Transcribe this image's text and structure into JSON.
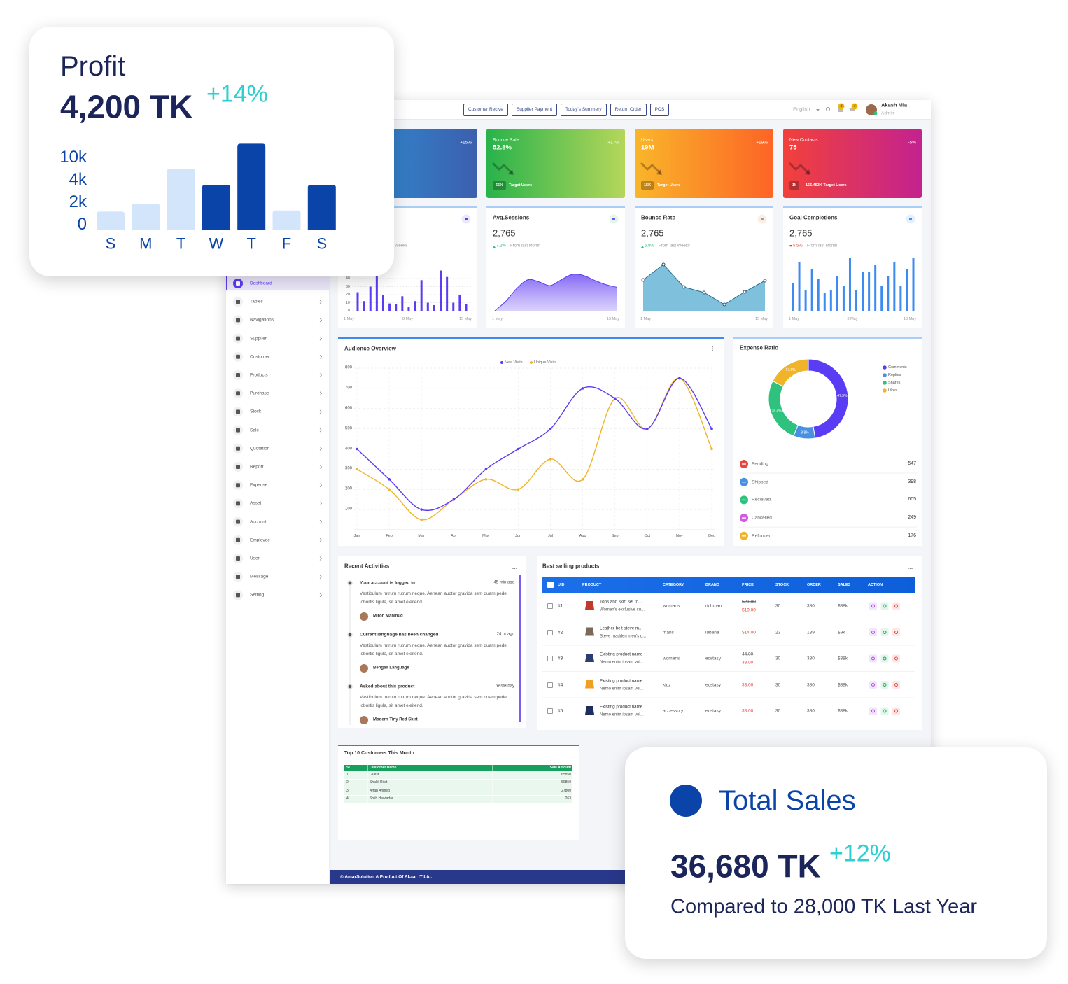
{
  "profit_card": {
    "title": "Profit",
    "value": "4,200 TK",
    "change": "+14%",
    "chart": {
      "type": "bar",
      "categories": [
        "S",
        "M",
        "T",
        "W",
        "T",
        "F",
        "S"
      ],
      "values": [
        1600,
        2300,
        8300,
        4000,
        15000,
        1700,
        4000
      ],
      "colors": [
        "#d3e5fb",
        "#d3e5fb",
        "#d3e5fb",
        "#0a44a8",
        "#0a44a8",
        "#d3e5fb",
        "#0a44a8"
      ],
      "ylim": [
        0,
        16000
      ],
      "yticks": [
        0,
        {
          "value": 2000,
          "label": "2k"
        },
        {
          "value": 4000,
          "label": "4k"
        },
        {
          "value": 10000,
          "label": "10k"
        }
      ]
    }
  },
  "total_sales_card": {
    "title": "Total Sales",
    "value": "36,680 TK",
    "change": "+12%",
    "note": "Compared to 28,000 TK Last Year"
  },
  "topbar": {
    "buttons": [
      "Customer Recive",
      "Supplier Payment",
      "Today's Summery",
      "Return Order",
      "POS"
    ],
    "language": "English",
    "notifications": "2",
    "cart": "3",
    "user": {
      "name": "Akash Mia",
      "role": "Admin"
    }
  },
  "stat_cards": [
    {
      "change": "+15%",
      "gradient": [
        "#2f93d6",
        "#3b5fae"
      ]
    },
    {
      "label": "Bounce Rate",
      "value": "52.8%",
      "change": "+17%",
      "badge": "65%",
      "target": "Target Users",
      "gradient": [
        "#28b34b",
        "#b5d65a"
      ]
    },
    {
      "label": "Users",
      "value": "19M",
      "change": "+19%",
      "badge": "15K",
      "target": "Target Users",
      "gradient": [
        "#f9b62a",
        "#fd6426"
      ]
    },
    {
      "label": "New Contacts",
      "value": "75",
      "change": "-5%",
      "badge": "1k",
      "target": "165.453K Target Users",
      "gradient": [
        "#f2413b",
        "#c3228f"
      ]
    }
  ],
  "mini_cards": [
    {
      "type": "bar",
      "note": "From last Weeks",
      "values": [
        23,
        12,
        30,
        47,
        20,
        9,
        8,
        18,
        5,
        12,
        38,
        10,
        7,
        50,
        42,
        10,
        20,
        8
      ],
      "ylim": [
        0,
        60
      ],
      "yticks": [
        0,
        10,
        20,
        30,
        40
      ],
      "xlabels": [
        "1 May",
        "8 May",
        "15 May"
      ],
      "color": "#5b3cf5"
    },
    {
      "type": "area",
      "title": "Avg.Sessions",
      "value": "2,765",
      "change": "7.2%",
      "note": "From last Month",
      "values": [
        0,
        18,
        42,
        58,
        54,
        47,
        58,
        68,
        66,
        57,
        49,
        44
      ],
      "xlabels": [
        "1 May",
        "15 May"
      ],
      "color": "#6f4ef2"
    },
    {
      "type": "area-markers",
      "title": "Bounce Rate",
      "value": "2,765",
      "change": "5.8%",
      "note": "From last Weeks",
      "values": [
        44,
        66,
        34,
        26,
        9,
        27,
        43
      ],
      "xlabels": [
        "1 May",
        "15 May"
      ],
      "color": "#5fb2d3"
    },
    {
      "type": "bar",
      "title": "Goal Completions",
      "value": "2,765",
      "change": "5.5%",
      "note": "From last Month",
      "values": [
        40,
        70,
        30,
        60,
        45,
        25,
        30,
        50,
        35,
        75,
        30,
        55,
        55,
        65,
        35,
        50,
        70,
        35,
        60,
        75
      ],
      "xlabels": [
        "1 May",
        "8 May",
        "15 May"
      ],
      "color": "#3d8bf0"
    }
  ],
  "sidebar": {
    "menu": [
      "Dashboard",
      "Tables",
      "Navigations",
      "Supplier",
      "Customer",
      "Products",
      "Purchase",
      "Stock",
      "Sale",
      "Quotation",
      "Report",
      "Expense",
      "Asset",
      "Account",
      "Employee",
      "User",
      "Message",
      "Setting"
    ]
  },
  "audience_overview": {
    "title": "Audience Overview",
    "categories": [
      "Jan",
      "Feb",
      "Mar",
      "Apr",
      "May",
      "Jun",
      "Jul",
      "Aug",
      "Sep",
      "Oct",
      "Nov",
      "Dec"
    ],
    "series": [
      {
        "name": "New Visits",
        "color": "#5b3cf5",
        "values": [
          400,
          250,
          100,
          150,
          300,
          400,
          500,
          700,
          650,
          500,
          750,
          500
        ]
      },
      {
        "name": "Unique Visits",
        "color": "#f0b429",
        "values": [
          300,
          200,
          50,
          150,
          250,
          200,
          350,
          250,
          650,
          500,
          750,
          400
        ]
      }
    ],
    "ylim": [
      0,
      800
    ],
    "yticks": [
      100,
      200,
      300,
      400,
      500,
      600,
      700,
      800
    ],
    "grid": true
  },
  "expense_ratio": {
    "title": "Expense Ratio",
    "categories": [
      "Comments",
      "Replies",
      "Shares",
      "Likes"
    ],
    "values": [
      47.3,
      8.8,
      26.4,
      17.6
    ],
    "value_labels": [
      "47.3%",
      "8.8%",
      "26.4%",
      "17.6%"
    ],
    "colors": [
      "#5b3cf5",
      "#4a90e2",
      "#2ec27e",
      "#f0b429"
    ]
  },
  "order_status": [
    {
      "label": "Pending",
      "value": 547,
      "color": "#e5483f"
    },
    {
      "label": "Shipped",
      "value": 398,
      "color": "#4a90e2"
    },
    {
      "label": "Recieved",
      "value": 605,
      "color": "#2ec27e"
    },
    {
      "label": "Cancelled",
      "value": 249,
      "color": "#d35be3"
    },
    {
      "label": "Refunded",
      "value": 176,
      "color": "#f0b429"
    }
  ],
  "recent_activities": {
    "title": "Recent Activities",
    "items": [
      {
        "title": "Your account is logged in",
        "time": "45 min ago",
        "body": "Vestibulum rutrum rutrum neque. Aenean auctor gravida sem quam pede lobortis ligula, sit amet eleifend.",
        "user": "Miron Mahmud"
      },
      {
        "title": "Current language has been changed",
        "time": "24 hr ago",
        "body": "Vestibulum rutrum rutrum neque. Aenean auctor gravida sem quam pede lobortis ligula, sit amet eleifend.",
        "user": "Bengali Language"
      },
      {
        "title": "Asked about this product",
        "time": "Yesterday",
        "body": "Vestibulum rutrum rutrum neque. Aenean auctor gravida sem quam pede lobortis ligula, sit amet eleifend.",
        "user": "Modern Tiny Red Skirt"
      }
    ]
  },
  "best_selling": {
    "title": "Best selling products",
    "headers": [
      "UID",
      "PRODUCT",
      "CATEGORY",
      "BRAND",
      "PRICE",
      "STOCK",
      "ORDER",
      "SALES",
      "ACTION"
    ],
    "rows": [
      {
        "uid": "#1",
        "name": "Tops and skirt set fo...",
        "desc": "Women's exclusive su...",
        "category": "womans",
        "brand": "richman",
        "old_price": "$21.00",
        "price": "$19.00",
        "stock": 30,
        "order": 380,
        "sales": "$38k"
      },
      {
        "uid": "#2",
        "name": "Leather belt steve m...",
        "desc": "Steve madden men's d...",
        "category": "mans",
        "brand": "lubana",
        "price": "$14.00",
        "stock": 23,
        "order": 189,
        "sales": "$9k"
      },
      {
        "uid": "#3",
        "name": "Existing product name",
        "desc": "Nemo enim ipsam vol...",
        "category": "womans",
        "brand": "ecstasy",
        "old_price": "44.00",
        "price": "33.00",
        "stock": 30,
        "order": 380,
        "sales": "$38k"
      },
      {
        "uid": "#4",
        "name": "Existing product name",
        "desc": "Nemo enim ipsam vol...",
        "category": "kidz",
        "brand": "ecstasy",
        "price": "33.00",
        "stock": 30,
        "order": 380,
        "sales": "$38k"
      },
      {
        "uid": "#5",
        "name": "Existing product name",
        "desc": "Nemo enim ipsam vol...",
        "category": "accessory",
        "brand": "ecstasy",
        "price": "33.00",
        "stock": 30,
        "order": 380,
        "sales": "$38k"
      }
    ]
  },
  "top_customers": {
    "title": "Top 10 Customers This Month",
    "headers": [
      "Sl",
      "Customer Name",
      "Sale Amount"
    ],
    "rows": [
      [
        1,
        "Guest",
        65850
      ],
      [
        2,
        "Shakil Rifat",
        59850
      ],
      [
        3,
        "Arfan Ahmed",
        27800
      ],
      [
        4,
        "Sojib Hawladar",
        263
      ]
    ]
  },
  "footer": "© AmarSolution A Product Of  Akaar IT Ltd."
}
